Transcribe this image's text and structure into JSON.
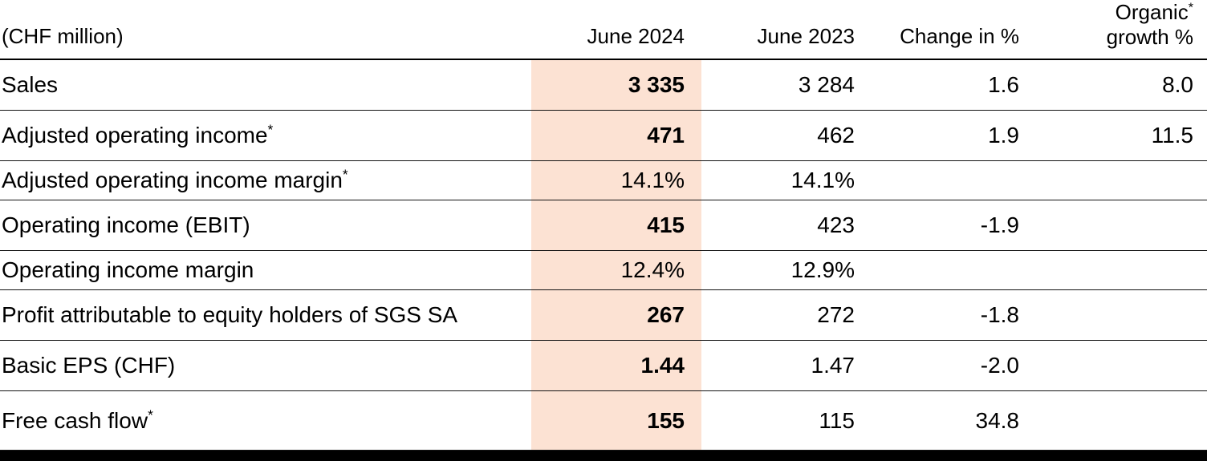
{
  "table": {
    "unit_label": "(CHF million)",
    "highlight_color": "#fce2d3",
    "columns": {
      "col_2024": "June 2024",
      "col_2023": "June 2023",
      "col_change": "Change in %",
      "col_organic_line1": "Organic",
      "col_organic_sup": "*",
      "col_organic_line2": "growth %"
    },
    "rows": [
      {
        "label": "Sales",
        "sup": "",
        "v2024": "3 335",
        "bold2024": true,
        "v2023": "3 284",
        "change": "1.6",
        "organic": "8.0"
      },
      {
        "label": "Adjusted operating income",
        "sup": "*",
        "v2024": "471",
        "bold2024": true,
        "v2023": "462",
        "change": "1.9",
        "organic": "11.5"
      },
      {
        "label": "Adjusted operating income margin",
        "sup": "*",
        "v2024": "14.1%",
        "bold2024": false,
        "v2023": "14.1%",
        "change": "",
        "organic": ""
      },
      {
        "label": "Operating income (EBIT)",
        "sup": "",
        "v2024": "415",
        "bold2024": true,
        "v2023": "423",
        "change": "-1.9",
        "organic": ""
      },
      {
        "label": "Operating income margin",
        "sup": "",
        "v2024": "12.4%",
        "bold2024": false,
        "v2023": "12.9%",
        "change": "",
        "organic": ""
      },
      {
        "label": "Profit attributable to equity holders of SGS SA",
        "sup": "",
        "v2024": "267",
        "bold2024": true,
        "v2023": "272",
        "change": "-1.8",
        "organic": ""
      },
      {
        "label": "Basic EPS (CHF)",
        "sup": "",
        "v2024": "1.44",
        "bold2024": true,
        "v2023": "1.47",
        "change": "-2.0",
        "organic": ""
      },
      {
        "label": "Free cash flow",
        "sup": "*",
        "v2024": "155",
        "bold2024": true,
        "v2023": "115",
        "change": "34.8",
        "organic": ""
      }
    ]
  }
}
